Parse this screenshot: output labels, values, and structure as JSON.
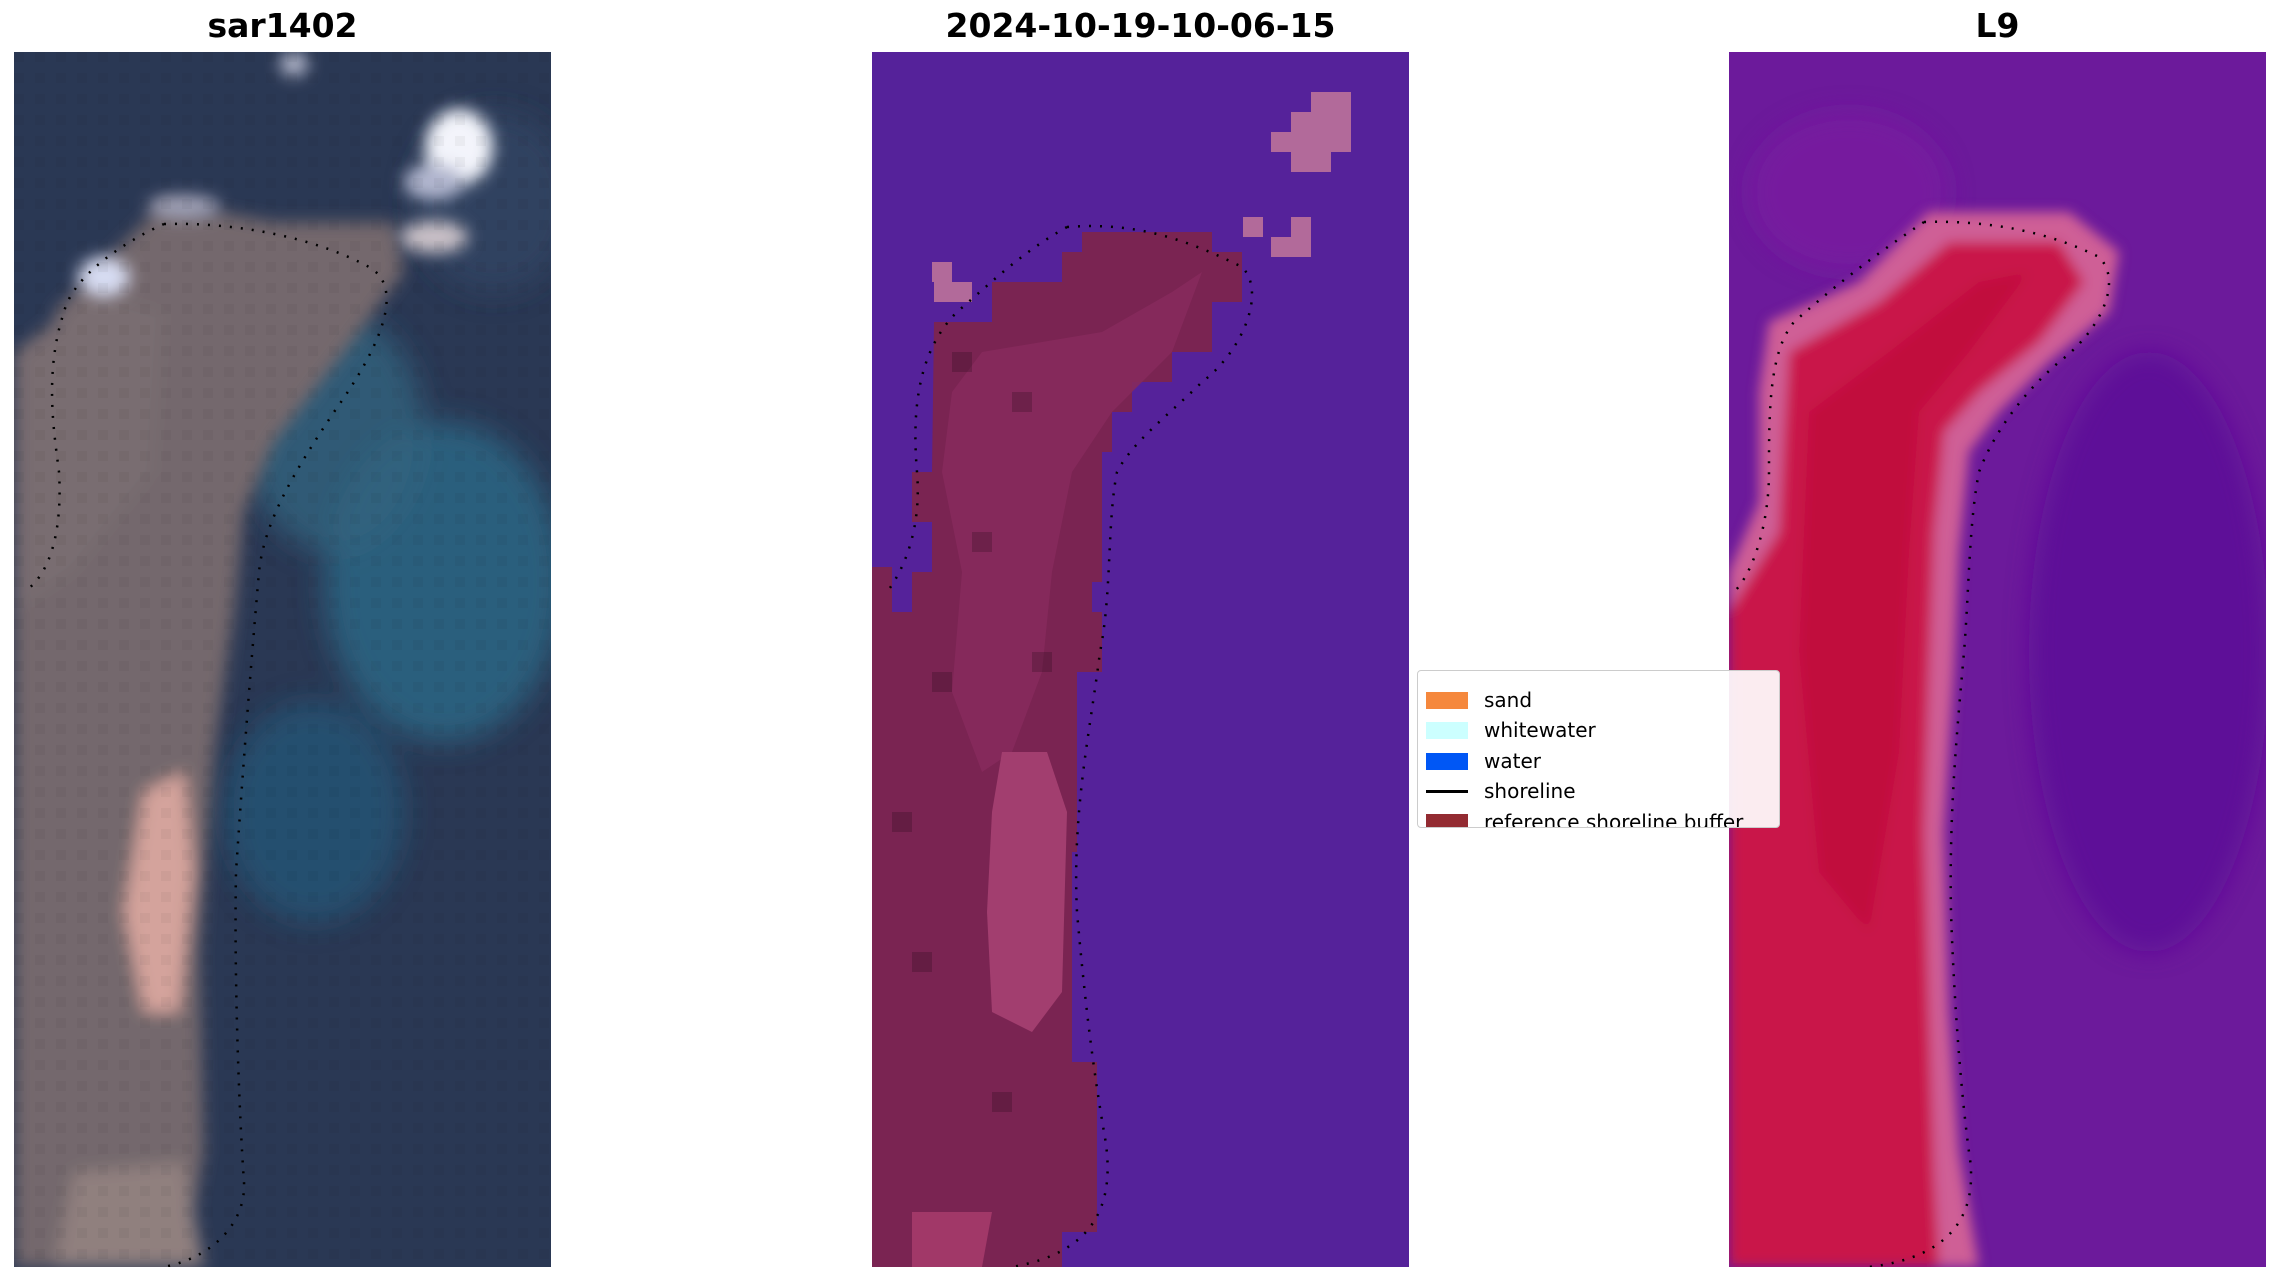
{
  "panels": [
    {
      "id": "rgb",
      "title": "sar1402"
    },
    {
      "id": "classification",
      "title": "2024-10-19-10-06-15"
    },
    {
      "id": "index",
      "title": "L9"
    }
  ],
  "legend": {
    "items": [
      {
        "label": "sand",
        "color": "#f5883d"
      },
      {
        "label": "whitewater",
        "color": "#ccffff"
      },
      {
        "label": "water",
        "color": "#0057f5"
      },
      {
        "label": "shoreline",
        "color": "#000000"
      },
      {
        "label": "reference shoreline buffer",
        "color": "#932b32"
      }
    ]
  },
  "colors": {
    "rgb_water_deep": "#1f2d4f",
    "rgb_water_shallow": "#1e5a79",
    "rgb_land": "#7a6e72",
    "rgb_bright_sand": "#d8a29a",
    "class_water": "#55229a",
    "class_land": "#7e2556",
    "class_land_light": "#a13f6e",
    "class_whitewater": "#b26a9a",
    "index_water": "#6a1a9c",
    "index_land": "#c2143e",
    "index_edge": "#d06097"
  }
}
